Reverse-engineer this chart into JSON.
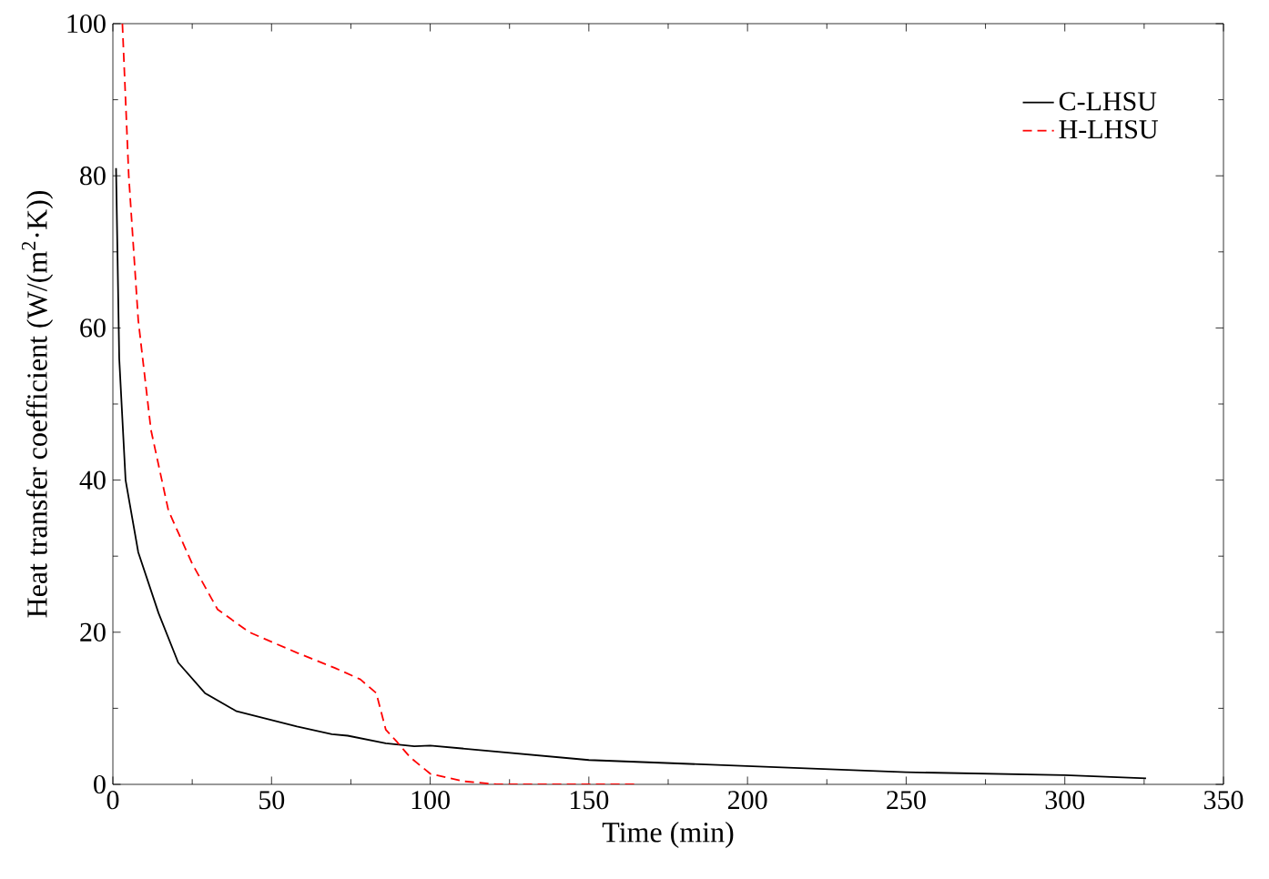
{
  "chart_data": {
    "type": "line",
    "xlabel": "Time (min)",
    "ylabel": "Heat transfer coefficient (W/(m$^{2}$·K))",
    "xlim": [
      0,
      350
    ],
    "ylim": [
      0,
      100
    ],
    "xticks": [
      0,
      50,
      100,
      150,
      200,
      250,
      300,
      350
    ],
    "yticks": [
      0,
      20,
      40,
      60,
      80,
      100
    ],
    "legend": "top right",
    "grid": false,
    "series": [
      {
        "name": "C-LHSU",
        "color": "#000000",
        "line_style": "solid",
        "x": [
          1,
          2,
          4,
          8,
          14.4,
          20.6,
          29,
          39,
          58,
          69,
          74,
          86,
          95,
          100,
          150,
          200,
          250,
          300,
          325.6
        ],
        "values": [
          81,
          56,
          40,
          30.5,
          22.5,
          16,
          12,
          9.6,
          7.6,
          6.6,
          6.4,
          5.4,
          5,
          5.1,
          3.2,
          2.4,
          1.6,
          1.2,
          0.8
        ]
      },
      {
        "name": "H-LHSU",
        "color": "#ff0000",
        "line_style": "dashed",
        "x": [
          3,
          5,
          8,
          12,
          17.5,
          25,
          33,
          43,
          58,
          70,
          78,
          83,
          86,
          89.5,
          93.6,
          100,
          110.7,
          121,
          165.5
        ],
        "values": [
          100,
          80,
          61,
          46.6,
          36,
          29,
          23,
          20,
          17.3,
          15.3,
          13.8,
          12,
          7.2,
          5.6,
          3.6,
          1.4,
          0.4,
          0,
          0
        ]
      }
    ]
  }
}
